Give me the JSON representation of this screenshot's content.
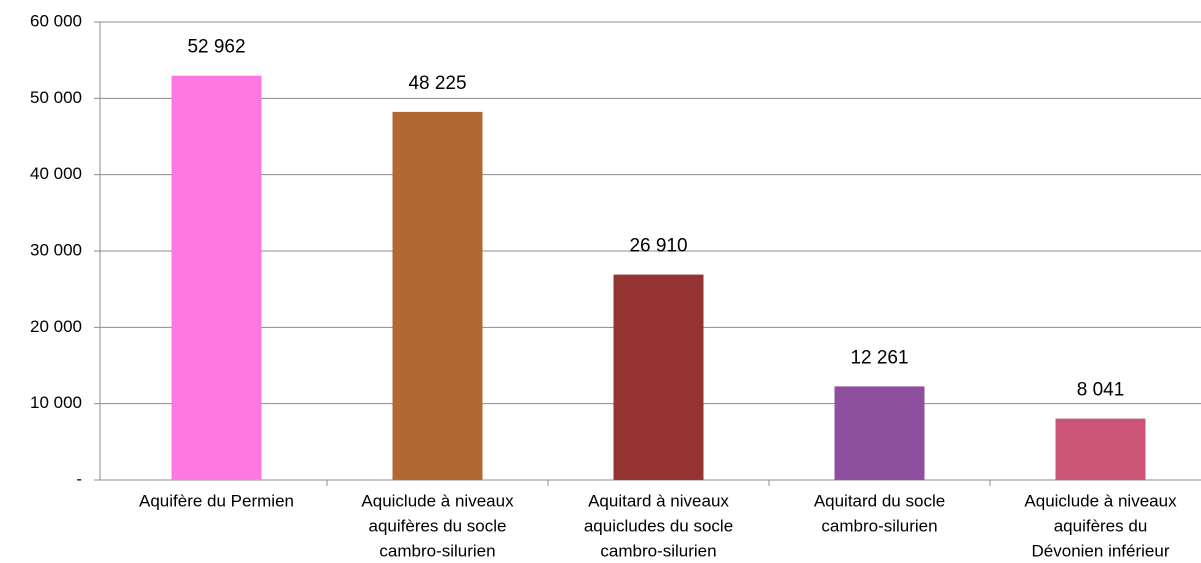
{
  "chart_data": {
    "type": "bar",
    "categories": [
      [
        "Aquifère du Permien"
      ],
      [
        "Aquiclude à niveaux",
        "aquifères du socle",
        "cambro-silurien"
      ],
      [
        "Aquitard à niveaux",
        "aquicludes du socle",
        "cambro-silurien"
      ],
      [
        "Aquitard du socle",
        "cambro-silurien"
      ],
      [
        "Aquiclude à niveaux",
        "aquifères du",
        "Dévonien inférieur"
      ]
    ],
    "values": [
      52962,
      48225,
      26910,
      12261,
      8041
    ],
    "value_labels": [
      "52 962",
      "48 225",
      "26 910",
      "12 261",
      "8 041"
    ],
    "colors": [
      "#ff77e0",
      "#b26833",
      "#953333",
      "#8e4f9f",
      "#cc5577"
    ],
    "ylim": [
      0,
      60000
    ],
    "yticks": [
      {
        "value": 0,
        "label": "-"
      },
      {
        "value": 10000,
        "label": "10 000"
      },
      {
        "value": 20000,
        "label": "20 000"
      },
      {
        "value": 30000,
        "label": "30 000"
      },
      {
        "value": 40000,
        "label": "40 000"
      },
      {
        "value": 50000,
        "label": "50 000"
      },
      {
        "value": 60000,
        "label": "60 000"
      }
    ],
    "grid": true
  }
}
